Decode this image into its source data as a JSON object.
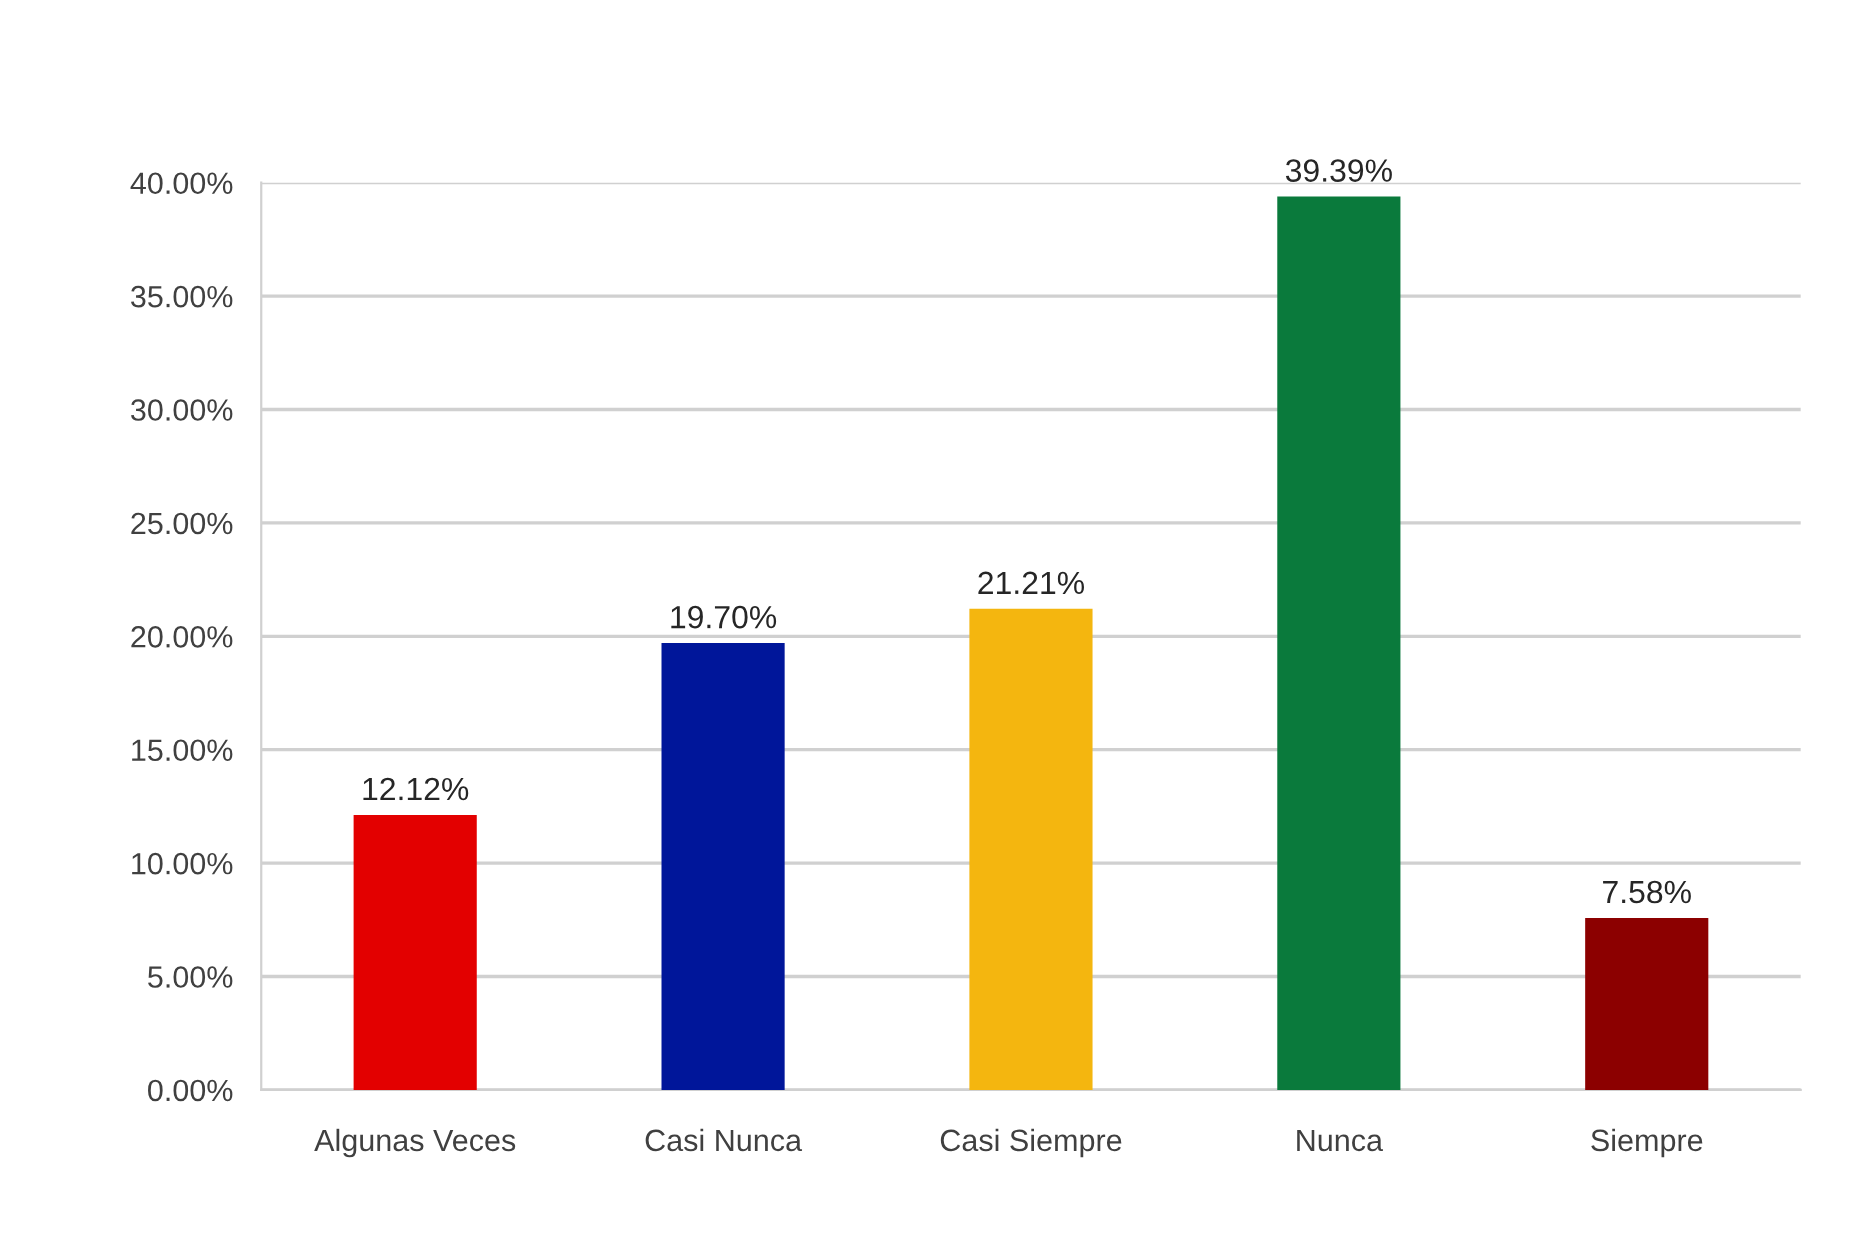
{
  "chart_data": {
    "type": "bar",
    "categories": [
      "Algunas Veces",
      "Casi Nunca",
      "Casi Siempre",
      "Nunca",
      "Siempre"
    ],
    "values": [
      12.12,
      19.7,
      21.21,
      39.39,
      7.58
    ],
    "colors": [
      "#e30000",
      "#00169a",
      "#f4b60f",
      "#0a7a3c",
      "#8c0000"
    ],
    "value_labels": [
      "12.12%",
      "19.70%",
      "21.21%",
      "39.39%",
      "7.58%"
    ],
    "ylim": [
      0,
      40
    ],
    "yticks": [
      {
        "value": 0,
        "label": "0.00%"
      },
      {
        "value": 5,
        "label": "5.00%"
      },
      {
        "value": 10,
        "label": "10.00%"
      },
      {
        "value": 15,
        "label": "15.00%"
      },
      {
        "value": 20,
        "label": "20.00%"
      },
      {
        "value": 25,
        "label": "25.00%"
      },
      {
        "value": 30,
        "label": "30.00%"
      },
      {
        "value": 35,
        "label": "35.00%"
      },
      {
        "value": 40,
        "label": "40.00%"
      }
    ],
    "grid": "y",
    "legend": false
  }
}
